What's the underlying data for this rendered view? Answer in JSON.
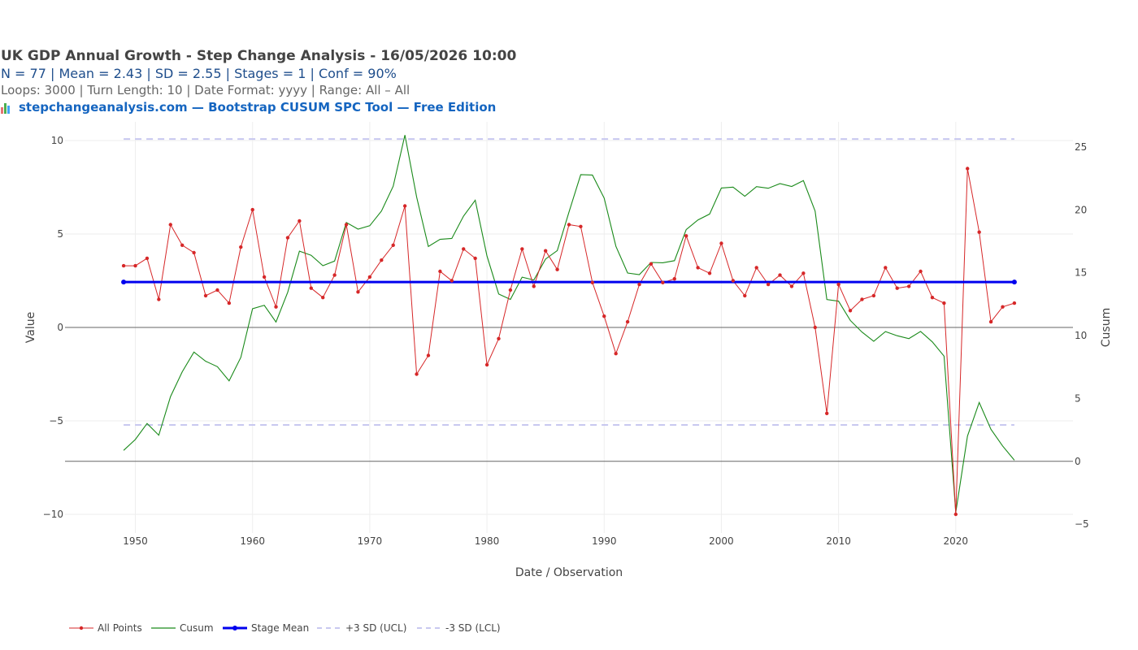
{
  "header": {
    "title": "UK GDP Annual Growth - Step Change Analysis - 16/05/2026 10:00",
    "stats": "N = 77  |  Mean = 2.43  |  SD = 2.55  |  Stages = 1  |  Conf = 90%",
    "settings": "Loops: 3000  |  Turn Length: 10  |  Date Format: yyyy  |  Range: All – All",
    "brand": "stepchangeanalysis.com — Bootstrap CUSUM SPC Tool — Free Edition",
    "brand_icon": "bar-chart-icon"
  },
  "chart_data": {
    "type": "line",
    "xlabel": "Date / Observation",
    "ylabel": "Value",
    "y2label": "Cusum",
    "xlim": [
      1944,
      2030
    ],
    "ylim": [
      -11,
      11
    ],
    "y2lim": [
      -5.7,
      27
    ],
    "x_ticks": [
      1950,
      1960,
      1970,
      1980,
      1990,
      2000,
      2010,
      2020
    ],
    "y_ticks": [
      10,
      5,
      0,
      -5,
      -10
    ],
    "y2_ticks": [
      25,
      20,
      15,
      10,
      5,
      0,
      -5
    ],
    "x_tick_labels": [
      "1950",
      "1960",
      "1970",
      "1980",
      "1990",
      "2000",
      "2010",
      "2020"
    ],
    "y_tick_labels": [
      "10",
      "5",
      "0",
      "−5",
      "−10"
    ],
    "y2_tick_labels": [
      "25",
      "20",
      "15",
      "10",
      "5",
      "0",
      "−5"
    ],
    "grid": true,
    "legend_position": "bottom-left",
    "x": [
      1949,
      1950,
      1951,
      1952,
      1953,
      1954,
      1955,
      1956,
      1957,
      1958,
      1959,
      1960,
      1961,
      1962,
      1963,
      1964,
      1965,
      1966,
      1967,
      1968,
      1969,
      1970,
      1971,
      1972,
      1973,
      1974,
      1975,
      1976,
      1977,
      1978,
      1979,
      1980,
      1981,
      1982,
      1983,
      1984,
      1985,
      1986,
      1987,
      1988,
      1989,
      1990,
      1991,
      1992,
      1993,
      1994,
      1995,
      1996,
      1997,
      1998,
      1999,
      2000,
      2001,
      2002,
      2003,
      2004,
      2005,
      2006,
      2007,
      2008,
      2009,
      2010,
      2011,
      2012,
      2013,
      2014,
      2015,
      2016,
      2017,
      2018,
      2019,
      2020,
      2021,
      2022,
      2023,
      2024,
      2025
    ],
    "series": [
      {
        "name": "All Points",
        "axis": "y",
        "color": "#d62728",
        "marker": true,
        "values": [
          3.3,
          3.3,
          3.7,
          1.5,
          5.5,
          4.4,
          4.0,
          1.7,
          2.0,
          1.3,
          4.3,
          6.3,
          2.7,
          1.1,
          4.8,
          5.7,
          2.1,
          1.6,
          2.8,
          5.5,
          1.9,
          2.7,
          3.6,
          4.4,
          6.5,
          -2.5,
          -1.5,
          3.0,
          2.5,
          4.2,
          3.7,
          -2.0,
          -0.6,
          2.0,
          4.2,
          2.2,
          4.1,
          3.1,
          5.5,
          5.4,
          2.4,
          0.6,
          -1.4,
          0.3,
          2.3,
          3.4,
          2.4,
          2.6,
          4.9,
          3.2,
          2.9,
          4.5,
          2.5,
          1.7,
          3.2,
          2.3,
          2.8,
          2.2,
          2.9,
          0.0,
          -4.6,
          2.3,
          0.9,
          1.5,
          1.7,
          3.2,
          2.1,
          2.2,
          3.0,
          1.6,
          1.3,
          -10.0,
          8.5,
          5.1,
          0.3,
          1.1,
          1.3
        ]
      },
      {
        "name": "Cusum",
        "axis": "y2",
        "color": "#1a8a1a",
        "marker": false,
        "values": [
          0.87,
          1.74,
          3.01,
          2.08,
          5.15,
          7.12,
          8.69,
          7.96,
          7.53,
          6.4,
          8.27,
          12.14,
          12.41,
          11.08,
          13.45,
          16.72,
          16.39,
          15.56,
          15.93,
          19.0,
          18.47,
          18.74,
          19.91,
          21.88,
          25.95,
          21.02,
          17.09,
          17.66,
          17.73,
          19.5,
          20.77,
          16.34,
          13.31,
          12.88,
          14.65,
          14.42,
          16.09,
          16.76,
          19.83,
          22.8,
          22.77,
          20.94,
          17.11,
          14.98,
          14.85,
          15.82,
          15.79,
          15.96,
          18.43,
          19.2,
          19.67,
          21.74,
          21.81,
          21.08,
          21.85,
          21.72,
          22.09,
          21.86,
          22.33,
          19.9,
          12.87,
          12.74,
          11.21,
          10.28,
          9.55,
          10.32,
          9.99,
          9.76,
          10.33,
          9.5,
          8.37,
          -4.06,
          2.01,
          4.68,
          2.55,
          1.22,
          0.09
        ]
      }
    ],
    "stage_mean": {
      "name": "Stage Mean",
      "value": 2.43,
      "x_start": 1949,
      "x_end": 2025,
      "color": "#0000ee"
    },
    "ucl": {
      "name": "+3 SD (UCL)",
      "value": 10.08,
      "color": "#c8c8f0"
    },
    "lcl": {
      "name": "-3 SD (LCL)",
      "value": -5.22,
      "color": "#c8c8f0"
    },
    "legend": [
      "All Points",
      "Cusum",
      "Stage Mean",
      "+3 SD (UCL)",
      "-3 SD (LCL)"
    ]
  }
}
